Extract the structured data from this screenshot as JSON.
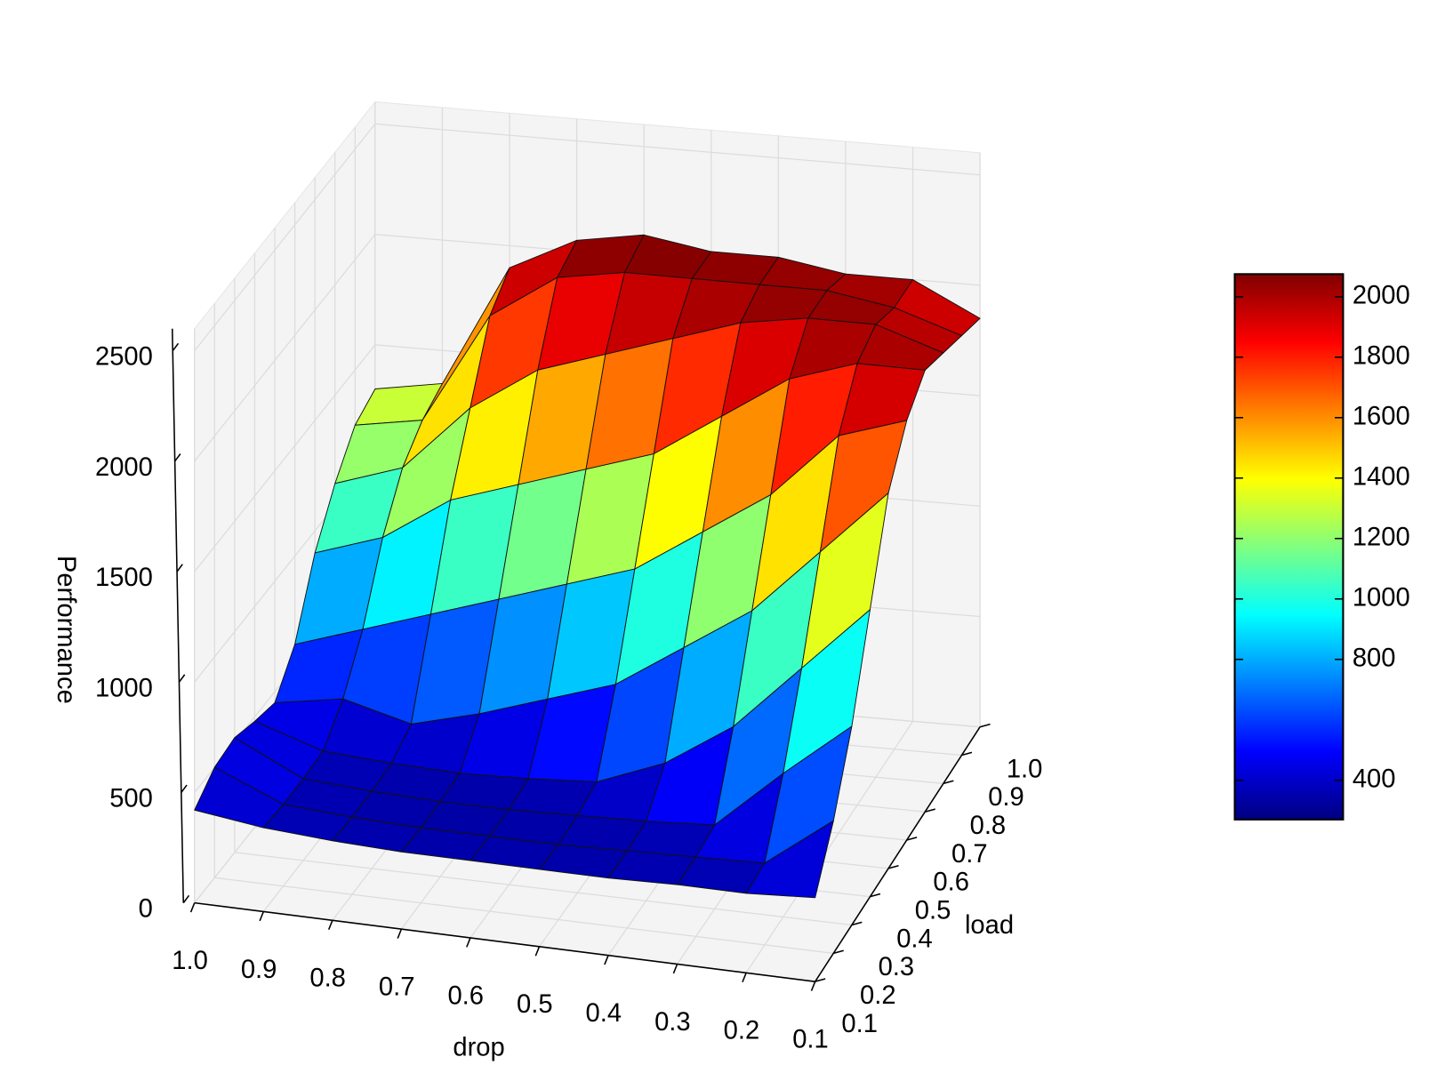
{
  "chart_data": {
    "type": "surface",
    "xlabel": "drop",
    "ylabel": "load",
    "zlabel": "Performance",
    "x": [
      1.0,
      0.9,
      0.8,
      0.7,
      0.6,
      0.5,
      0.4,
      0.3,
      0.2,
      0.1
    ],
    "y": [
      0.1,
      0.2,
      0.3,
      0.4,
      0.5,
      0.6,
      0.7,
      0.8,
      0.9,
      1.0
    ],
    "z": [
      [
        420,
        380,
        360,
        350,
        350,
        350,
        350,
        360,
        360,
        380
      ],
      [
        500,
        370,
        350,
        340,
        340,
        340,
        350,
        360,
        370,
        600
      ],
      [
        520,
        370,
        350,
        340,
        340,
        350,
        360,
        380,
        650,
        900
      ],
      [
        480,
        380,
        360,
        350,
        360,
        380,
        500,
        700,
        1000,
        1300
      ],
      [
        450,
        500,
        420,
        500,
        600,
        700,
        900,
        1100,
        1400,
        1700
      ],
      [
        600,
        700,
        800,
        900,
        1000,
        1100,
        1300,
        1500,
        1800,
        1900
      ],
      [
        900,
        1000,
        1200,
        1300,
        1400,
        1500,
        1700,
        1900,
        2000,
        2000
      ],
      [
        1100,
        1200,
        1500,
        1700,
        1800,
        1900,
        2000,
        2050,
        2050,
        1950
      ],
      [
        1250,
        1300,
        1800,
        2000,
        2050,
        2050,
        2050,
        2050,
        2000,
        1900
      ],
      [
        1300,
        1350,
        1900,
        2050,
        2100,
        2050,
        2050,
        2000,
        2000,
        1850
      ]
    ],
    "xlim": [
      1.0,
      0.1
    ],
    "ylim": [
      0.1,
      1.0
    ],
    "zlim": [
      0,
      2600
    ],
    "xticks": [
      {
        "value": 1.0,
        "label": "1.0"
      },
      0.9,
      0.8,
      0.7,
      0.6,
      0.5,
      0.4,
      0.3,
      0.2,
      0.1
    ],
    "yticks": [
      0.1,
      0.2,
      0.3,
      0.4,
      0.5,
      0.6,
      0.7,
      0.8,
      0.9,
      {
        "value": 1.0,
        "label": "1.0"
      }
    ],
    "zticks": [
      0,
      500,
      1000,
      1500,
      2000,
      2500
    ],
    "grid": true,
    "colorbar": {
      "colormap": "jet",
      "clim": [
        270,
        2075
      ],
      "ticks": [
        400,
        800,
        1000,
        1200,
        1400,
        1600,
        1800,
        2000
      ]
    }
  }
}
